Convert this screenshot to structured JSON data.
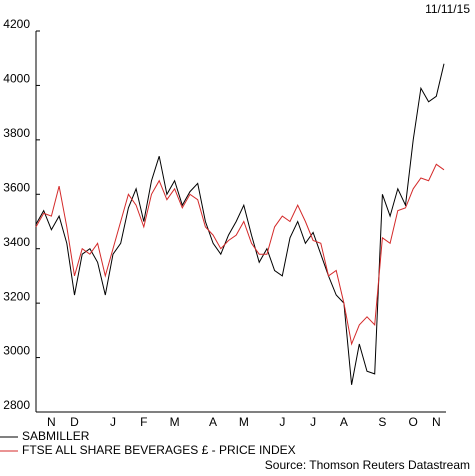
{
  "chart_data": {
    "type": "line",
    "date": "11/11/15",
    "source": "Source: Thomson Reuters Datastream",
    "categories": [
      null,
      null,
      "N",
      null,
      null,
      "D",
      null,
      null,
      null,
      null,
      "J",
      null,
      null,
      null,
      "F",
      null,
      null,
      null,
      "M",
      null,
      null,
      null,
      null,
      "A",
      null,
      null,
      null,
      "M",
      null,
      null,
      null,
      null,
      "J",
      null,
      null,
      null,
      "J",
      null,
      null,
      null,
      "A",
      null,
      null,
      null,
      null,
      "S",
      null,
      null,
      null,
      "O",
      null,
      null,
      "N",
      null
    ],
    "series": [
      {
        "name": "SABMILLER",
        "color": "#000000",
        "values": [
          3490,
          3540,
          3470,
          3520,
          3420,
          3230,
          3380,
          3400,
          3350,
          3230,
          3380,
          3420,
          3550,
          3620,
          3500,
          3650,
          3740,
          3600,
          3650,
          3560,
          3610,
          3640,
          3500,
          3420,
          3380,
          3450,
          3500,
          3560,
          3450,
          3350,
          3400,
          3320,
          3300,
          3440,
          3500,
          3420,
          3460,
          3380,
          3300,
          3230,
          3200,
          2900,
          3050,
          2950,
          2940,
          3600,
          3520,
          3620,
          3560,
          3800,
          3990,
          3940,
          3960,
          4080
        ]
      },
      {
        "name": "FTSE ALL SHARE BEVERAGES £ - PRICE INDEX",
        "color": "#d42a2a",
        "values": [
          3480,
          3530,
          3520,
          3630,
          3480,
          3300,
          3400,
          3380,
          3420,
          3300,
          3400,
          3500,
          3600,
          3560,
          3480,
          3600,
          3650,
          3580,
          3620,
          3550,
          3600,
          3580,
          3480,
          3450,
          3400,
          3430,
          3450,
          3500,
          3420,
          3380,
          3380,
          3480,
          3520,
          3500,
          3560,
          3500,
          3430,
          3420,
          3300,
          3320,
          3200,
          3050,
          3120,
          3150,
          3120,
          3440,
          3420,
          3540,
          3550,
          3620,
          3660,
          3650,
          3710,
          3690
        ]
      }
    ],
    "ylim": [
      2800,
      4200
    ],
    "yticks": [
      2800,
      3000,
      3200,
      3400,
      3600,
      3800,
      4000,
      4200
    ],
    "grid": false
  }
}
